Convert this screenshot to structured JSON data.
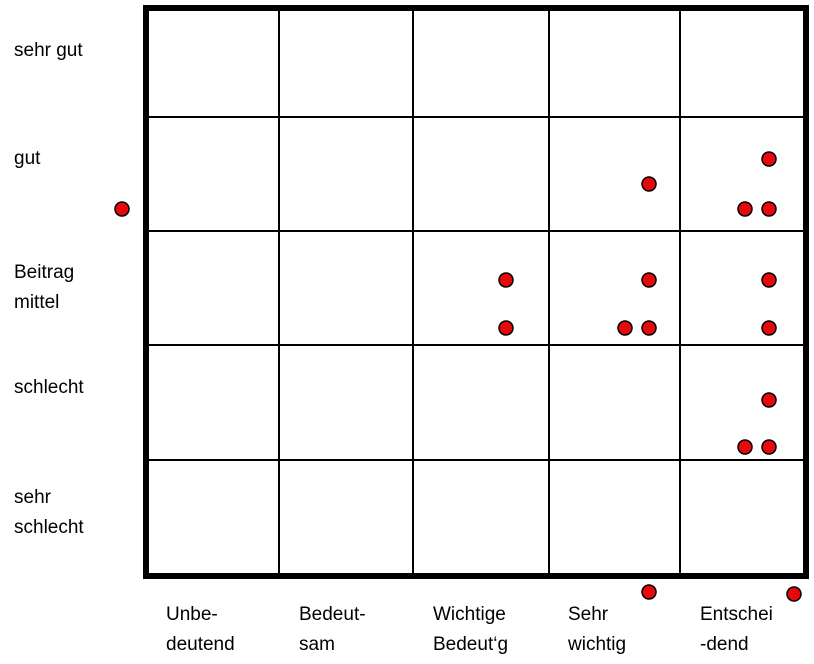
{
  "row_labels": [
    {
      "lines": [
        "sehr gut"
      ]
    },
    {
      "lines": [
        "gut"
      ]
    },
    {
      "lines": [
        "Beitrag",
        "mittel"
      ]
    },
    {
      "lines": [
        "schlecht"
      ]
    },
    {
      "lines": [
        "sehr",
        "schlecht"
      ]
    }
  ],
  "column_labels": [
    {
      "lines": [
        "Unbe-",
        "deutend"
      ]
    },
    {
      "lines": [
        "Bedeut-",
        "sam"
      ]
    },
    {
      "lines": [
        "Wichtige",
        "Bedeut‘g"
      ]
    },
    {
      "lines": [
        "Sehr",
        "wichtig"
      ]
    },
    {
      "lines": [
        "Entschei",
        "-dend"
      ]
    }
  ],
  "colors": {
    "dot_fill": "#e8080c",
    "dot_stroke": "#000000",
    "grid_line": "#000000",
    "background": "#ffffff"
  }
}
